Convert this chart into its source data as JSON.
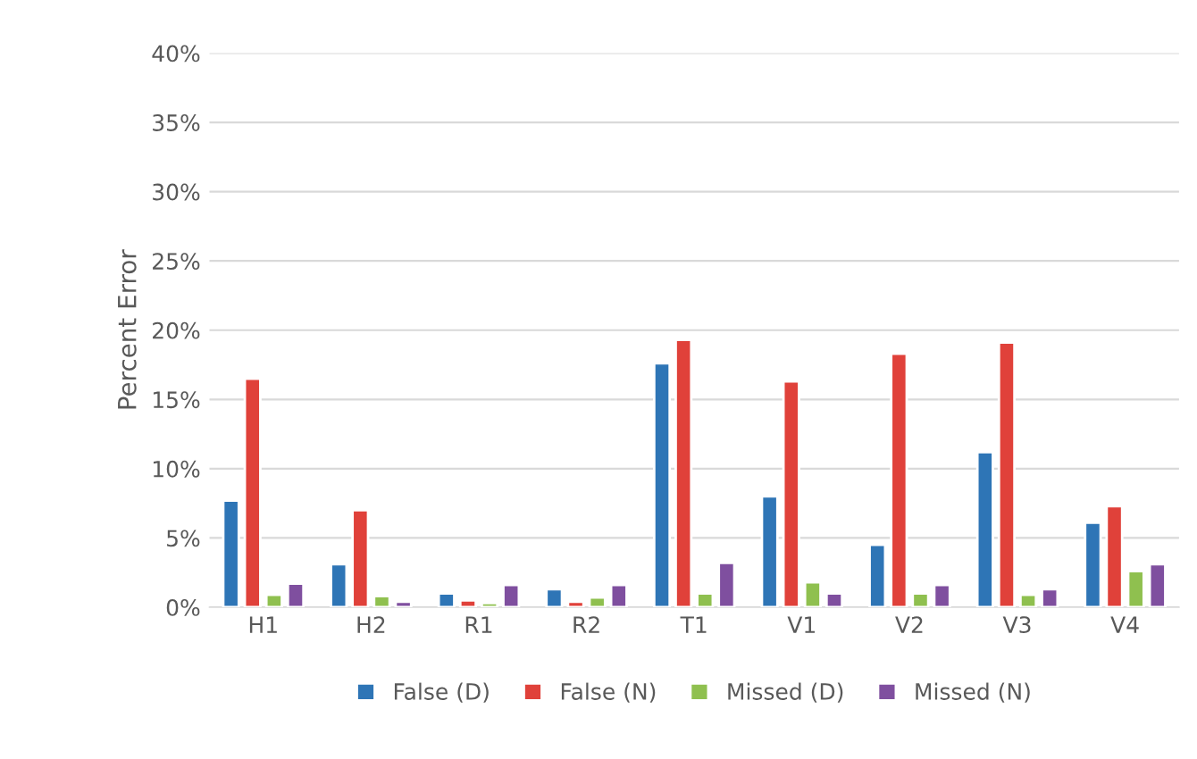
{
  "chart_data": {
    "type": "bar",
    "ylabel": "Percent Error",
    "categories": [
      "H1",
      "H2",
      "R1",
      "R2",
      "T1",
      "V1",
      "V2",
      "V3",
      "V4"
    ],
    "series": [
      {
        "name": "False (D)",
        "color": "#2e75b6",
        "values": [
          7.7,
          3.1,
          1.0,
          1.3,
          17.6,
          8.0,
          4.5,
          11.2,
          6.1
        ]
      },
      {
        "name": "False (N)",
        "color": "#e0413a",
        "values": [
          16.5,
          7.0,
          0.5,
          0.4,
          19.3,
          16.3,
          18.3,
          19.1,
          7.3
        ]
      },
      {
        "name": "Missed (D)",
        "color": "#8fc04f",
        "values": [
          0.9,
          0.8,
          0.3,
          0.7,
          1.0,
          1.8,
          1.0,
          0.9,
          2.6
        ]
      },
      {
        "name": "Missed (N)",
        "color": "#7f4f9f",
        "values": [
          1.7,
          0.4,
          1.6,
          1.6,
          3.2,
          1.0,
          1.6,
          1.3,
          3.1
        ]
      }
    ],
    "ylim": [
      0,
      40
    ],
    "yticks": [
      {
        "value": 0,
        "label": "0%"
      },
      {
        "value": 5,
        "label": "5%"
      },
      {
        "value": 10,
        "label": "10%"
      },
      {
        "value": 15,
        "label": "15%"
      },
      {
        "value": 20,
        "label": "20%"
      },
      {
        "value": 25,
        "label": "25%"
      },
      {
        "value": 30,
        "label": "30%"
      },
      {
        "value": 35,
        "label": "35%"
      },
      {
        "value": 40,
        "label": "40%"
      }
    ],
    "grid": "y",
    "legend": "bottom"
  }
}
